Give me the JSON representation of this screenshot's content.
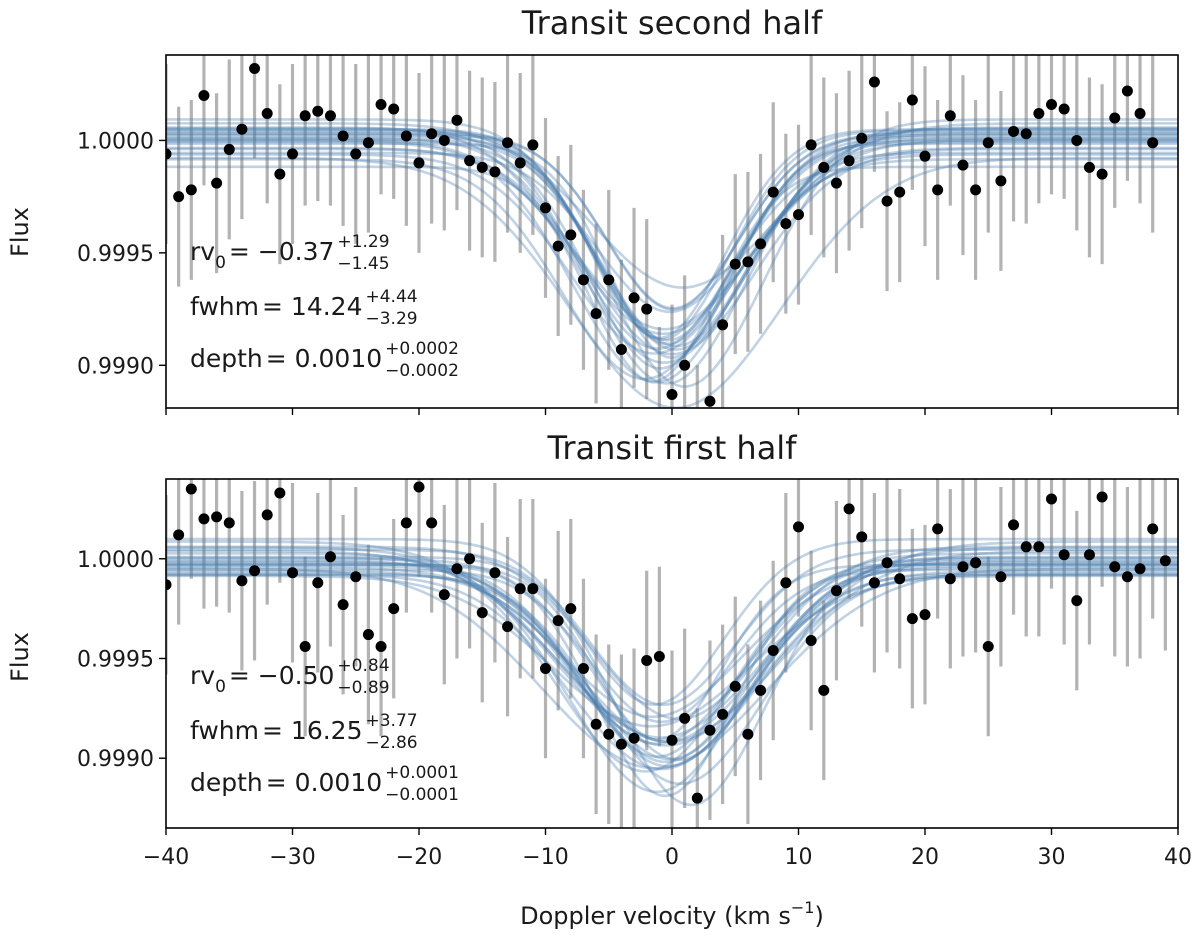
{
  "chart_data": [
    {
      "type": "scatter",
      "title": "Transit second half",
      "xlabel": "",
      "ylabel": "Flux",
      "xlim": [
        -40,
        40
      ],
      "ylim": [
        0.99881,
        1.00038
      ],
      "yticks": [
        "0.9990",
        "0.9995",
        "1.0000"
      ],
      "yticks_values": [
        0.999,
        0.9995,
        1.0
      ],
      "annotations": [
        {
          "name": "rv",
          "base": "rv",
          "sub": "0",
          "value": "= −0.37",
          "sup": "+1.29",
          "low": "−1.45"
        },
        {
          "name": "fwhm",
          "base": "fwhm",
          "sub": "",
          "value": "= 14.24",
          "sup": "+4.44",
          "low": "−3.29"
        },
        {
          "name": "depth",
          "base": "depth",
          "sub": "",
          "value": "= 0.0010",
          "sup": "+0.0002",
          "low": "−0.0002"
        }
      ],
      "points": [
        [
          -40,
          0.99994,
          0.0004
        ],
        [
          -39,
          0.99975,
          0.0004
        ],
        [
          -38,
          0.99978,
          0.0004
        ],
        [
          -37,
          1.0002,
          0.0004
        ],
        [
          -36,
          0.99981,
          0.0004
        ],
        [
          -35,
          0.99996,
          0.0004
        ],
        [
          -34,
          1.00005,
          0.0004
        ],
        [
          -33,
          1.00032,
          0.0004
        ],
        [
          -32,
          1.00012,
          0.0004
        ],
        [
          -31,
          0.99985,
          0.0004
        ],
        [
          -30,
          0.99994,
          0.0004
        ],
        [
          -29,
          1.00011,
          0.0004
        ],
        [
          -28,
          1.00013,
          0.0004
        ],
        [
          -27,
          1.00011,
          0.0004
        ],
        [
          -26,
          1.00002,
          0.0004
        ],
        [
          -25,
          0.99994,
          0.0004
        ],
        [
          -24,
          0.99999,
          0.0004
        ],
        [
          -23,
          1.00016,
          0.0004
        ],
        [
          -22,
          1.00014,
          0.0004
        ],
        [
          -21,
          1.00002,
          0.0004
        ],
        [
          -20,
          0.9999,
          0.0004
        ],
        [
          -19,
          1.00003,
          0.0004
        ],
        [
          -18,
          1.0,
          0.0004
        ],
        [
          -17,
          1.00009,
          0.0004
        ],
        [
          -16,
          0.99991,
          0.0004
        ],
        [
          -15,
          0.99988,
          0.0004
        ],
        [
          -14,
          0.99986,
          0.0004
        ],
        [
          -13,
          0.99999,
          0.0004
        ],
        [
          -12,
          0.9999,
          0.0004
        ],
        [
          -11,
          0.99998,
          0.0004
        ],
        [
          -10,
          0.9997,
          0.0004
        ],
        [
          -9,
          0.99953,
          0.0004
        ],
        [
          -8,
          0.99958,
          0.0004
        ],
        [
          -7,
          0.99938,
          0.0004
        ],
        [
          -6,
          0.99923,
          0.0004
        ],
        [
          -5,
          0.99938,
          0.0004
        ],
        [
          -4,
          0.99907,
          0.0004
        ],
        [
          -3,
          0.9993,
          0.0004
        ],
        [
          -2,
          0.99925,
          0.0004
        ],
        [
          -1,
          0.99877,
          0.0004
        ],
        [
          0,
          0.99887,
          0.0004
        ],
        [
          1,
          0.999,
          0.0004
        ],
        [
          2,
          0.9986,
          0.0004
        ],
        [
          3,
          0.99884,
          0.0004
        ],
        [
          4,
          0.99918,
          0.0004
        ],
        [
          5,
          0.99945,
          0.0004
        ],
        [
          6,
          0.99946,
          0.0004
        ],
        [
          7,
          0.99954,
          0.0004
        ],
        [
          8,
          0.99977,
          0.0004
        ],
        [
          9,
          0.99963,
          0.0004
        ],
        [
          10,
          0.99967,
          0.0004
        ],
        [
          11,
          0.99998,
          0.0004
        ],
        [
          12,
          0.99988,
          0.0004
        ],
        [
          13,
          0.99981,
          0.0004
        ],
        [
          14,
          0.99991,
          0.0004
        ],
        [
          15,
          1.00001,
          0.0004
        ],
        [
          16,
          1.00026,
          0.0004
        ],
        [
          17,
          0.99973,
          0.0004
        ],
        [
          18,
          0.99977,
          0.0004
        ],
        [
          19,
          1.00018,
          0.0004
        ],
        [
          20,
          0.99993,
          0.0004
        ],
        [
          21,
          0.99978,
          0.0004
        ],
        [
          22,
          1.00011,
          0.0004
        ],
        [
          23,
          0.99989,
          0.0004
        ],
        [
          24,
          0.99978,
          0.0004
        ],
        [
          25,
          0.99999,
          0.0004
        ],
        [
          26,
          0.99982,
          0.0004
        ],
        [
          27,
          1.00004,
          0.0004
        ],
        [
          28,
          1.00003,
          0.0004
        ],
        [
          29,
          1.00012,
          0.0004
        ],
        [
          30,
          1.00016,
          0.0004
        ],
        [
          31,
          1.00014,
          0.0004
        ],
        [
          32,
          1.0,
          0.0004
        ],
        [
          33,
          0.99988,
          0.0004
        ],
        [
          34,
          0.99985,
          0.0004
        ],
        [
          35,
          1.0001,
          0.0004
        ],
        [
          36,
          1.00022,
          0.0004
        ],
        [
          37,
          1.00012,
          0.0004
        ],
        [
          38,
          0.99999,
          0.0004
        ]
      ],
      "model": {
        "rv0": -0.37,
        "fwhm": 14.24,
        "depth": 0.001,
        "samples": 24
      }
    },
    {
      "type": "scatter",
      "title": "Transit first half",
      "xlabel": "Doppler velocity (km s",
      "xlabel_sup": "−1",
      "xlabel_end": ")",
      "ylabel": "Flux",
      "xlim": [
        -40,
        40
      ],
      "ylim": [
        0.99865,
        1.0004
      ],
      "xticks": [
        "−40",
        "−30",
        "−20",
        "−10",
        "0",
        "10",
        "20",
        "30",
        "40"
      ],
      "xticks_values": [
        -40,
        -30,
        -20,
        -10,
        0,
        10,
        20,
        30,
        40
      ],
      "yticks": [
        "0.9990",
        "0.9995",
        "1.0000"
      ],
      "yticks_values": [
        0.999,
        0.9995,
        1.0
      ],
      "annotations": [
        {
          "name": "rv",
          "base": "rv",
          "sub": "0",
          "value": "= −0.50",
          "sup": "+0.84",
          "low": "−0.89"
        },
        {
          "name": "fwhm",
          "base": "fwhm",
          "sub": "",
          "value": "= 16.25",
          "sup": "+3.77",
          "low": "−2.86"
        },
        {
          "name": "depth",
          "base": "depth",
          "sub": "",
          "value": "= 0.0010",
          "sup": "+0.0001",
          "low": "−0.0001"
        }
      ],
      "points": [
        [
          -40,
          0.99987,
          0.00045
        ],
        [
          -39,
          1.00012,
          0.00045
        ],
        [
          -38,
          1.00035,
          0.00045
        ],
        [
          -37,
          1.0002,
          0.00045
        ],
        [
          -36,
          1.00021,
          0.00045
        ],
        [
          -35,
          1.00018,
          0.00045
        ],
        [
          -34,
          0.99989,
          0.00045
        ],
        [
          -33,
          0.99994,
          0.00045
        ],
        [
          -32,
          1.00022,
          0.00045
        ],
        [
          -31,
          1.00033,
          0.00045
        ],
        [
          -30,
          0.99993,
          0.00045
        ],
        [
          -29,
          0.99956,
          0.00045
        ],
        [
          -28,
          0.99988,
          0.00045
        ],
        [
          -27,
          1.00001,
          0.00045
        ],
        [
          -26,
          0.99977,
          0.00045
        ],
        [
          -25,
          0.99991,
          0.00045
        ],
        [
          -24,
          0.99962,
          0.00045
        ],
        [
          -23,
          0.99956,
          0.00045
        ],
        [
          -22,
          0.99975,
          0.00045
        ],
        [
          -21,
          1.00018,
          0.00045
        ],
        [
          -20,
          1.00036,
          0.00045
        ],
        [
          -19,
          1.00018,
          0.00045
        ],
        [
          -18,
          0.99982,
          0.00045
        ],
        [
          -17,
          0.99995,
          0.00045
        ],
        [
          -16,
          1.0,
          0.00045
        ],
        [
          -15,
          0.99973,
          0.00045
        ],
        [
          -14,
          0.99993,
          0.00045
        ],
        [
          -13,
          0.99966,
          0.00045
        ],
        [
          -12,
          0.99985,
          0.00045
        ],
        [
          -11,
          0.99985,
          0.00045
        ],
        [
          -10,
          0.99945,
          0.00045
        ],
        [
          -9,
          0.99969,
          0.00045
        ],
        [
          -8,
          0.99975,
          0.00045
        ],
        [
          -7,
          0.99945,
          0.00045
        ],
        [
          -6,
          0.99917,
          0.00045
        ],
        [
          -5,
          0.99912,
          0.00045
        ],
        [
          -4,
          0.99907,
          0.00045
        ],
        [
          -3,
          0.9991,
          0.00045
        ],
        [
          -2,
          0.99949,
          0.00045
        ],
        [
          -1,
          0.99951,
          0.00045
        ],
        [
          0,
          0.99909,
          0.00045
        ],
        [
          1,
          0.9992,
          0.00045
        ],
        [
          2,
          0.9988,
          0.00045
        ],
        [
          3,
          0.99914,
          0.00045
        ],
        [
          4,
          0.99922,
          0.00045
        ],
        [
          5,
          0.99936,
          0.00045
        ],
        [
          6,
          0.99912,
          0.00045
        ],
        [
          7,
          0.99934,
          0.00045
        ],
        [
          8,
          0.99954,
          0.00045
        ],
        [
          9,
          0.99988,
          0.00045
        ],
        [
          10,
          1.00016,
          0.00045
        ],
        [
          11,
          0.99959,
          0.00045
        ],
        [
          12,
          0.99934,
          0.00045
        ],
        [
          13,
          0.99984,
          0.00045
        ],
        [
          14,
          1.00025,
          0.00045
        ],
        [
          15,
          1.00011,
          0.00045
        ],
        [
          16,
          0.99988,
          0.00045
        ],
        [
          17,
          0.99998,
          0.00045
        ],
        [
          18,
          0.9999,
          0.00045
        ],
        [
          19,
          0.9997,
          0.00045
        ],
        [
          20,
          0.99972,
          0.00045
        ],
        [
          21,
          1.00015,
          0.00045
        ],
        [
          22,
          0.9999,
          0.00045
        ],
        [
          23,
          0.99996,
          0.00045
        ],
        [
          24,
          0.99998,
          0.00045
        ],
        [
          25,
          0.99956,
          0.00045
        ],
        [
          26,
          0.99991,
          0.00045
        ],
        [
          27,
          1.00017,
          0.00045
        ],
        [
          28,
          1.00006,
          0.00045
        ],
        [
          29,
          1.00006,
          0.00045
        ],
        [
          30,
          1.0003,
          0.00045
        ],
        [
          31,
          1.00002,
          0.00045
        ],
        [
          32,
          0.99979,
          0.00045
        ],
        [
          33,
          1.00002,
          0.00045
        ],
        [
          34,
          1.00031,
          0.00045
        ],
        [
          35,
          0.99996,
          0.00045
        ],
        [
          36,
          0.99991,
          0.00045
        ],
        [
          37,
          0.99995,
          0.00045
        ],
        [
          38,
          1.00015,
          0.00045
        ],
        [
          39,
          0.99999,
          0.00045
        ]
      ],
      "model": {
        "rv0": -0.5,
        "fwhm": 16.25,
        "depth": 0.001,
        "samples": 24
      }
    }
  ],
  "colors": {
    "points": "#000000",
    "errorbars": "#b3b3b3",
    "models": "#4a7fb0",
    "axes": "#000000"
  }
}
